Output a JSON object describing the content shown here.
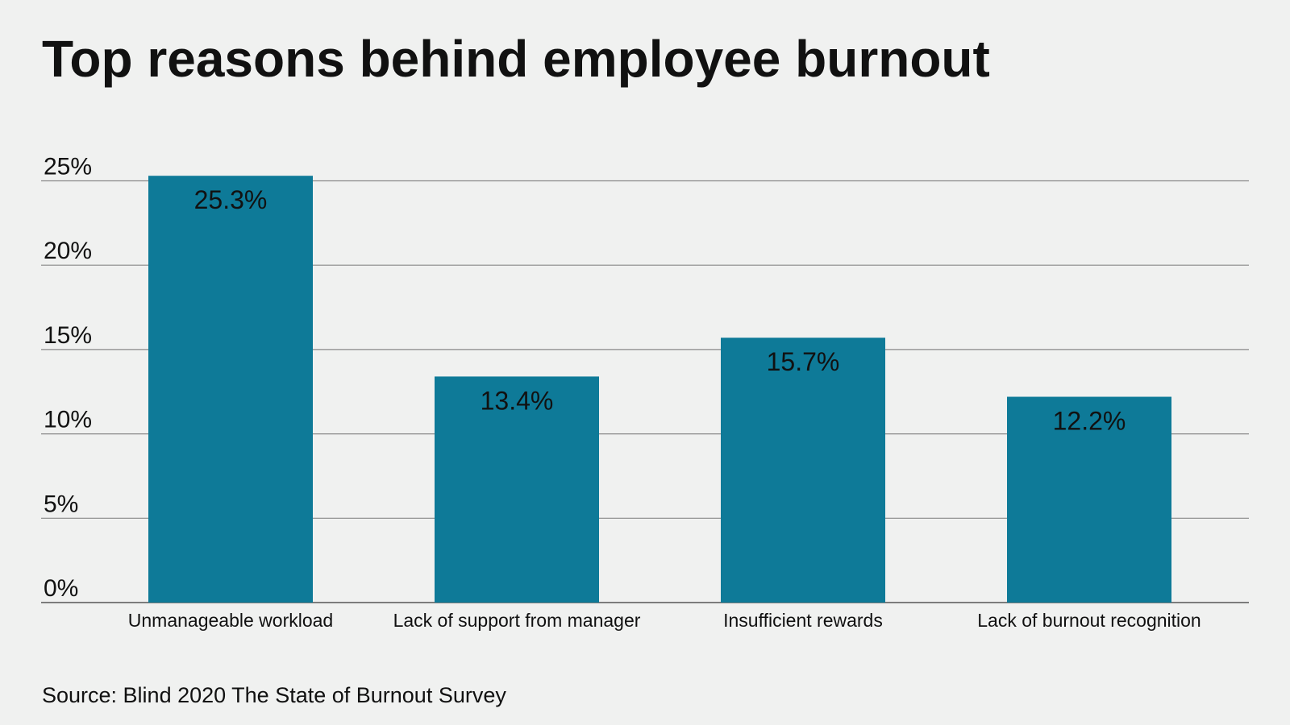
{
  "chart_data": {
    "type": "bar",
    "title": "Top reasons behind employee burnout",
    "categories": [
      "Unmanageable workload",
      "Lack of support from manager",
      "Insufficient rewards",
      "Lack of burnout recognition"
    ],
    "values": [
      25.3,
      13.4,
      15.7,
      12.2
    ],
    "value_labels": [
      "25.3%",
      "13.4%",
      "15.7%",
      "12.2%"
    ],
    "yticks": [
      0,
      5,
      10,
      15,
      20,
      25
    ],
    "ytick_labels": [
      "0%",
      "5%",
      "10%",
      "15%",
      "20%",
      "25%"
    ],
    "ylim": [
      0,
      25
    ],
    "xlabel": "",
    "ylabel": "",
    "grid": true,
    "bar_color": "#0e7a98",
    "source": "Source: Blind 2020 The State of Burnout Survey"
  }
}
